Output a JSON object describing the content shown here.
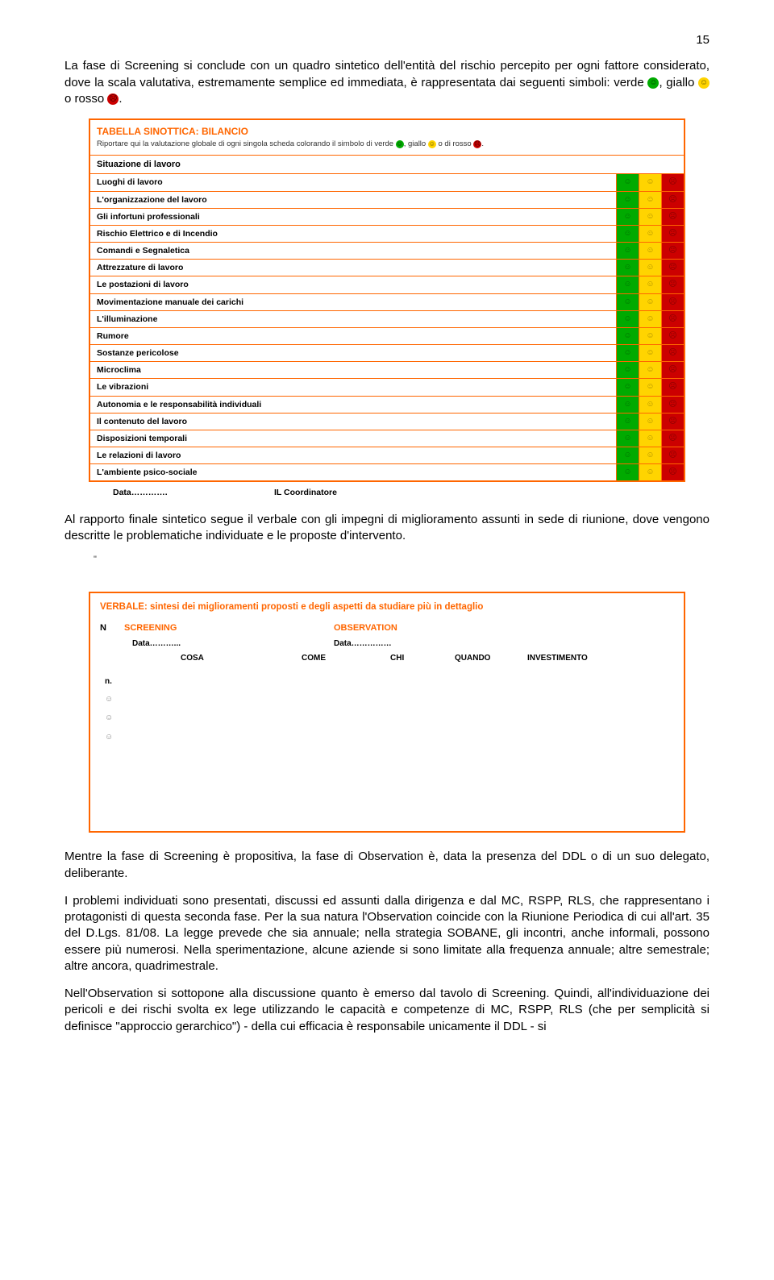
{
  "page_number": "15",
  "para1_pre": "La fase di Screening si conclude con un quadro sintetico dell'entità del rischio percepito per ogni fattore considerato, dove la scala valutativa, estremamente semplice ed immediata, è rappresentata dai seguenti simboli: verde ",
  "para1_mid1": ", giallo ",
  "para1_mid2": " o rosso ",
  "para1_end": ".",
  "table": {
    "title": "TABELLA SINOTTICA: BILANCIO",
    "subtitle_pre": "Riportare qui la valutazione globale di ogni singola scheda colorando il simbolo di verde ",
    "subtitle_mid1": ", giallo ",
    "subtitle_mid2": " o di rosso ",
    "subtitle_end": ".",
    "section": "Situazione di lavoro",
    "rows": [
      "Luoghi di lavoro",
      "L'organizzazione del lavoro",
      "Gli infortuni professionali",
      "Rischio Elettrico e di Incendio",
      "Comandi e Segnaletica",
      "Attrezzature di lavoro",
      "Le postazioni di lavoro",
      "Movimentazione manuale dei carichi",
      "L'illuminazione",
      "Rumore",
      "Sostanze pericolose",
      "Microclima",
      "Le vibrazioni",
      "Autonomia e le responsabilità individuali",
      "Il contenuto del lavoro",
      "Disposizioni temporali",
      "Le relazioni di lavoro",
      "L'ambiente psico-sociale"
    ],
    "colors": {
      "green": "#00aa00",
      "yellow": "#ffd400",
      "red": "#cc0000"
    },
    "face_marks": [
      "☺",
      "☺",
      "☹"
    ]
  },
  "sig_data": "Data………….",
  "sig_coord": "IL Coordinatore",
  "para2": "Al rapporto finale sintetico segue il verbale con gli impegni di miglioramento assunti in sede di riunione, dove vengono descritte le problematiche individuate e le proposte d'intervento.",
  "verbale": {
    "title": "VERBALE: sintesi dei miglioramenti proposti e degli aspetti da studiare più in dettaglio",
    "n": "N",
    "screening": "SCREENING",
    "observation": "OBSERVATION",
    "data1": "Data………...",
    "data2": "Data……………",
    "cols": [
      "COSA",
      "COME",
      "CHI",
      "QUANDO",
      "INVESTIMENTO"
    ],
    "nlabel": "n.",
    "mark": "☺"
  },
  "para3": "Mentre la fase di Screening è propositiva, la fase di Observation è, data la presenza del DDL o di un suo delegato, deliberante.",
  "para4": "I problemi individuati sono presentati, discussi ed assunti dalla dirigenza e dal MC, RSPP, RLS, che rappresentano i protagonisti di questa seconda fase. Per la sua natura l'Observation coincide con la Riunione Periodica di cui all'art. 35 del D.Lgs. 81/08. La legge prevede che sia annuale; nella strategia SOBANE, gli incontri, anche informali, possono essere più numerosi. Nella sperimentazione, alcune aziende si sono limitate alla frequenza annuale; altre semestrale; altre ancora, quadrimestrale.",
  "para5": "Nell'Observation si sottopone alla discussione quanto è emerso dal tavolo di Screening. Quindi, all'individuazione dei pericoli e dei rischi svolta ex lege utilizzando le capacità e competenze di MC, RSPP, RLS (che per semplicità si definisce \"approccio gerarchico\") - della cui efficacia è responsabile unicamente il DDL - si"
}
